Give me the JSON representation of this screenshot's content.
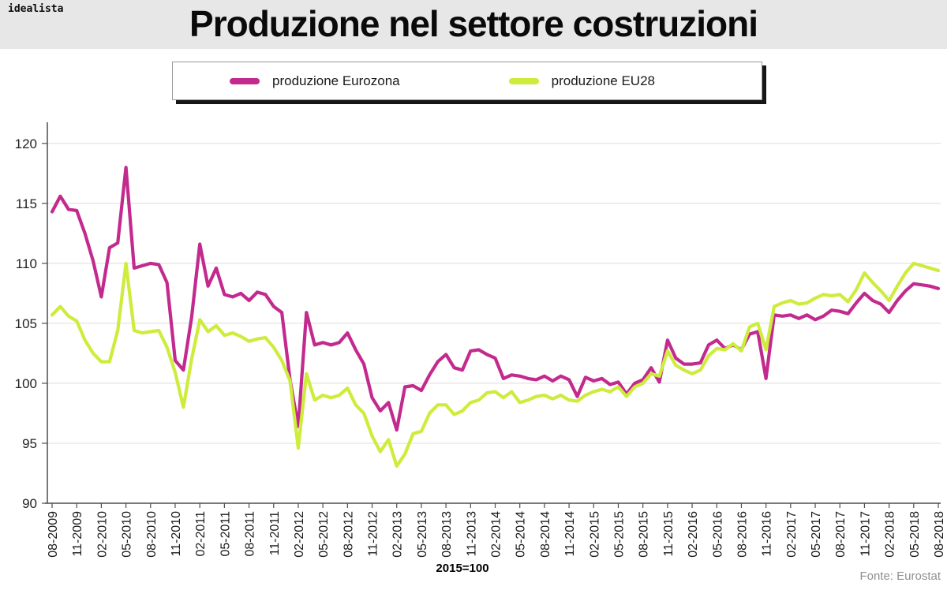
{
  "header": {
    "logo": "idealista",
    "title": "Produzione nel settore costruzioni"
  },
  "chart_data": {
    "type": "line",
    "title": "Produzione nel settore costruzioni",
    "note": "2015=100",
    "source": "Fonte: Eurostat",
    "frequency": "monthly",
    "start": "08-2009",
    "end": "08-2018",
    "grid": "horizontal",
    "legend_position": "top",
    "ylim": [
      90,
      120
    ],
    "y_ticks": [
      90,
      95,
      100,
      105,
      110,
      115,
      120
    ],
    "x_tick_labels": [
      "08-2009",
      "11-2009",
      "02-2010",
      "05-2010",
      "08-2010",
      "11-2010",
      "02-2011",
      "05-2011",
      "08-2011",
      "11-2011",
      "02-2012",
      "05-2012",
      "08-2012",
      "11-2012",
      "02-2013",
      "05-2013",
      "08-2013",
      "11-2013",
      "02-2014",
      "05-2014",
      "08-2014",
      "11-2014",
      "02-2015",
      "05-2015",
      "08-2015",
      "11-2015",
      "02-2016",
      "05-2016",
      "08-2016",
      "11-2016",
      "02-2017",
      "05-2017",
      "08-2017",
      "11-2017",
      "02-2018",
      "05-2018",
      "08-2018"
    ],
    "series": [
      {
        "name": "produzione Eurozona",
        "color": "#c32a8e",
        "values": [
          114.3,
          115.6,
          114.5,
          114.4,
          112.5,
          110.2,
          107.2,
          111.3,
          111.7,
          118.0,
          109.6,
          109.8,
          110.0,
          109.9,
          108.4,
          101.9,
          101.1,
          105.5,
          111.6,
          108.1,
          109.6,
          107.4,
          107.2,
          107.5,
          106.9,
          107.6,
          107.4,
          106.4,
          105.9,
          100.3,
          96.4,
          105.9,
          103.2,
          103.4,
          103.2,
          103.4,
          104.2,
          102.8,
          101.6,
          98.8,
          97.7,
          98.4,
          96.1,
          99.7,
          99.8,
          99.4,
          100.7,
          101.8,
          102.4,
          101.3,
          101.1,
          102.7,
          102.8,
          102.4,
          102.1,
          100.4,
          100.7,
          100.6,
          100.4,
          100.3,
          100.6,
          100.2,
          100.6,
          100.3,
          98.9,
          100.5,
          100.2,
          100.4,
          99.9,
          100.1,
          99.1,
          100.0,
          100.3,
          101.3,
          100.1,
          103.6,
          102.1,
          101.6,
          101.6,
          101.7,
          103.2,
          103.6,
          102.9,
          103.2,
          102.8,
          104.1,
          104.3,
          100.4,
          105.7,
          105.6,
          105.7,
          105.4,
          105.7,
          105.3,
          105.6,
          106.1,
          106.0,
          105.8,
          106.7,
          107.5,
          106.9,
          106.6,
          105.9,
          106.9,
          107.7,
          108.3,
          108.2,
          108.1,
          107.9
        ]
      },
      {
        "name": "produzione EU28",
        "color": "#cdec3c",
        "values": [
          105.7,
          106.4,
          105.6,
          105.2,
          103.6,
          102.5,
          101.8,
          101.8,
          104.4,
          110.0,
          104.4,
          104.2,
          104.3,
          104.4,
          103.0,
          100.9,
          98.0,
          102.0,
          105.3,
          104.3,
          104.8,
          104.0,
          104.2,
          103.9,
          103.5,
          103.7,
          103.8,
          103.0,
          101.9,
          100.2,
          94.6,
          100.8,
          98.6,
          99.0,
          98.8,
          99.0,
          99.6,
          98.2,
          97.5,
          95.6,
          94.3,
          95.3,
          93.1,
          94.1,
          95.8,
          96.0,
          97.5,
          98.2,
          98.2,
          97.4,
          97.7,
          98.4,
          98.6,
          99.2,
          99.3,
          98.8,
          99.3,
          98.4,
          98.6,
          98.9,
          99.0,
          98.7,
          99.0,
          98.6,
          98.5,
          99.0,
          99.3,
          99.5,
          99.3,
          99.7,
          98.9,
          99.7,
          100.0,
          100.8,
          100.6,
          102.7,
          101.5,
          101.1,
          100.8,
          101.1,
          102.3,
          102.9,
          102.8,
          103.3,
          102.7,
          104.7,
          105.0,
          102.8,
          106.4,
          106.7,
          106.9,
          106.6,
          106.7,
          107.1,
          107.4,
          107.3,
          107.4,
          106.8,
          107.8,
          109.2,
          108.4,
          107.7,
          106.9,
          108.1,
          109.2,
          110.0,
          109.8,
          109.6,
          109.4
        ]
      }
    ]
  }
}
